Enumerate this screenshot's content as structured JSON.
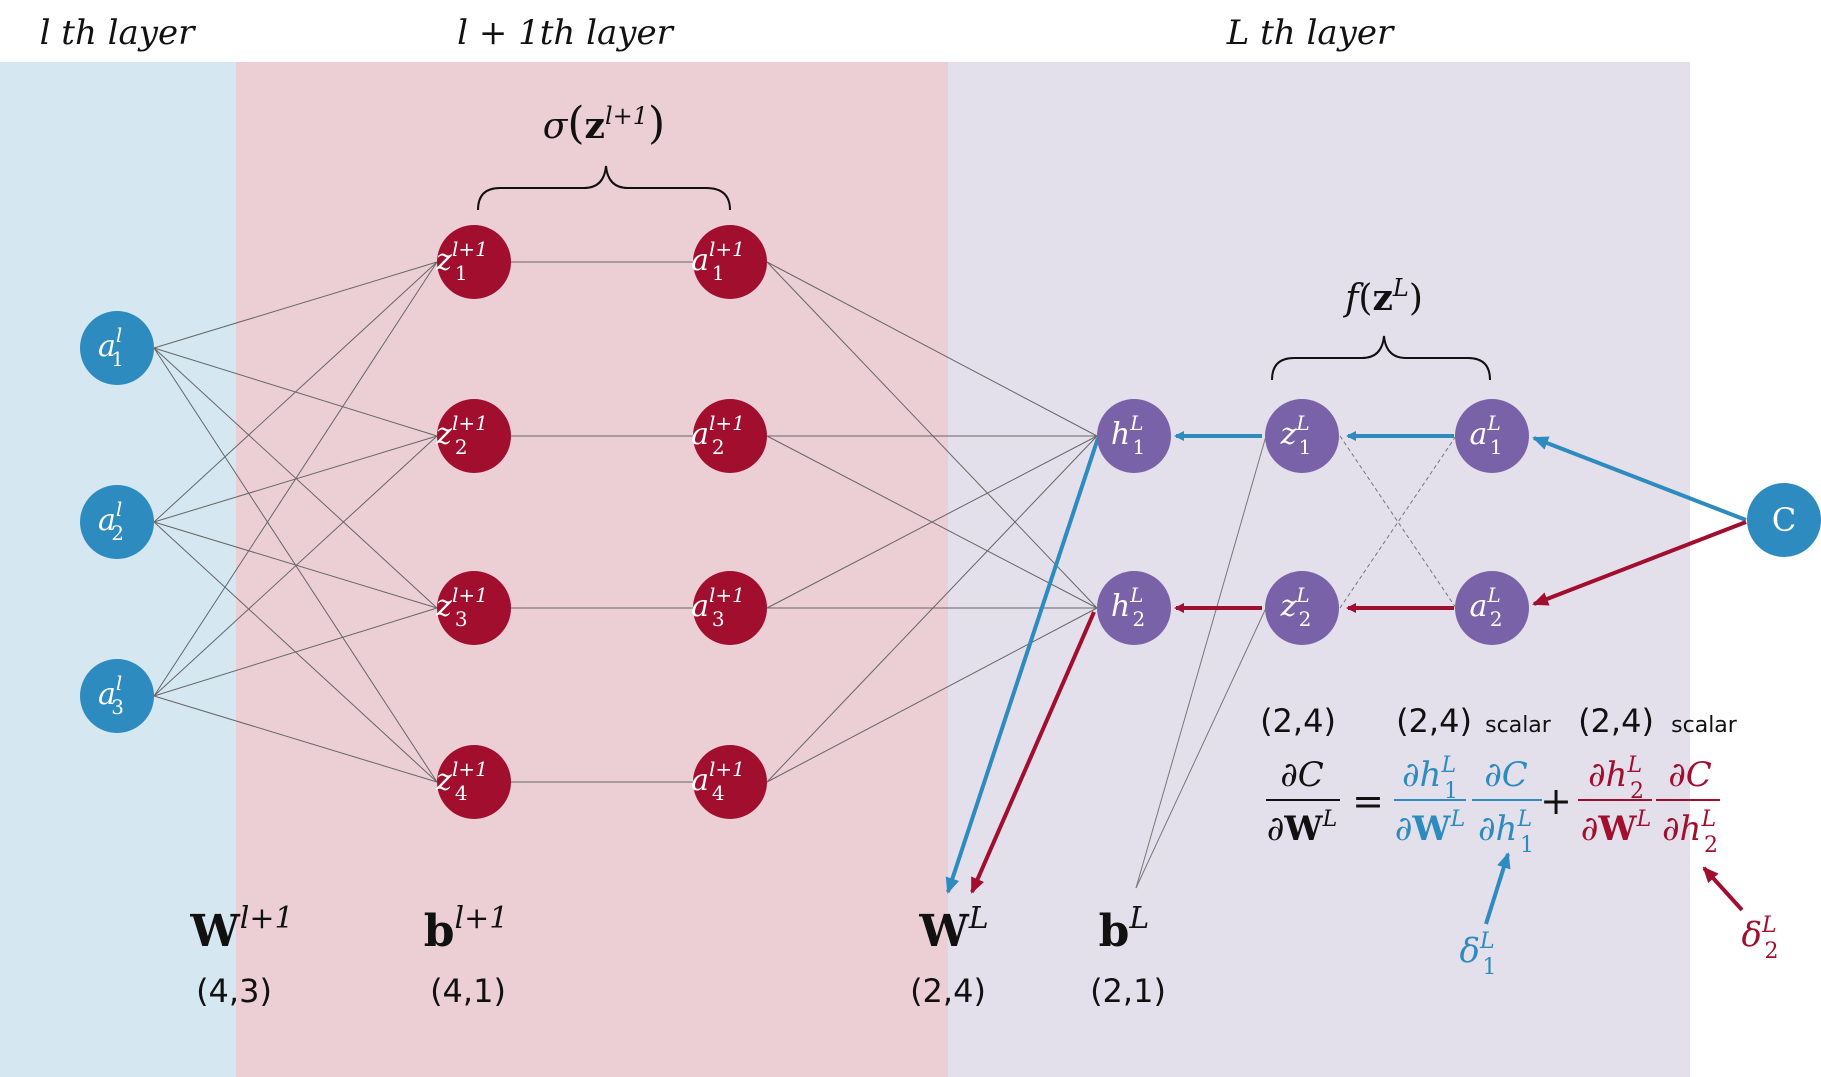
{
  "layers": {
    "l": "l th layer",
    "l1": "l + 1th layer",
    "L": "L th layer"
  },
  "colors": {
    "blue": "#2e8bc0",
    "red": "#a10e2e",
    "purple": "#7a62a8",
    "bg_blue": "#d5e7f1",
    "bg_red": "#ecced5",
    "bg_purple": "#e3e0eb"
  },
  "braces": {
    "sigma": "σ(z^{l+1})",
    "f": "f(z^L)"
  },
  "nodes": {
    "a_l": [
      "a₁ˡ",
      "a₂ˡ",
      "a₃ˡ"
    ],
    "z_l1": [
      "z₁ˡ⁺¹",
      "z₂ˡ⁺¹",
      "z₃ˡ⁺¹",
      "z₄ˡ⁺¹"
    ],
    "a_l1": [
      "a₁ˡ⁺¹",
      "a₂ˡ⁺¹",
      "a₃ˡ⁺¹",
      "a₄ˡ⁺¹"
    ],
    "h_L": [
      "h₁ᴸ",
      "h₂ᴸ"
    ],
    "z_L": [
      "z₁ᴸ",
      "z₂ᴸ"
    ],
    "a_L": [
      "a₁ᴸ",
      "a₂ᴸ"
    ],
    "cost": "C"
  },
  "params": {
    "W_l1": "W^{l+1}",
    "W_l1_shape": "(4,3)",
    "b_l1": "b^{l+1}",
    "b_l1_shape": "(4,1)",
    "W_L": "W^L",
    "W_L_shape": "(2,4)",
    "b_L": "b^L",
    "b_L_shape": "(2,1)"
  },
  "equation": {
    "lhs_shape": "(2,4)",
    "term1_shape": "(2,4)",
    "term1_note": "scalar",
    "term2_shape": "(2,4)",
    "term2_note": "scalar",
    "lhs": "∂C / ∂W^L",
    "term1": "∂h₁ᴸ/∂Wᴸ · ∂C/∂h₁ᴸ",
    "term2": "∂h₂ᴸ/∂Wᴸ · ∂C/∂h₂ᴸ"
  },
  "deltas": {
    "d1": "δ₁ᴸ",
    "d2": "δ₂ᴸ"
  }
}
